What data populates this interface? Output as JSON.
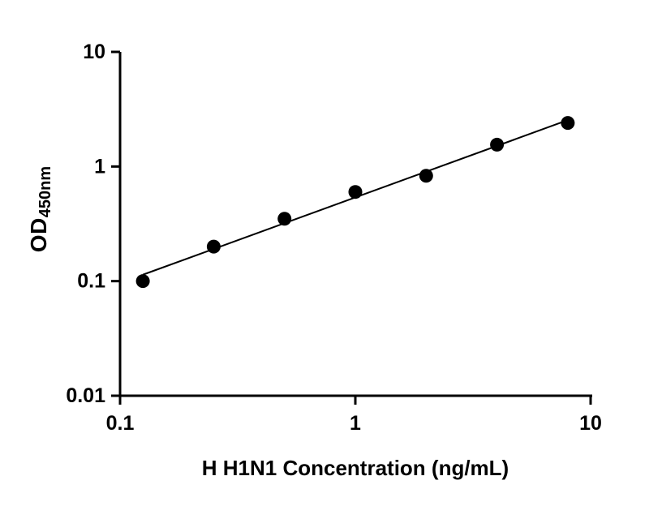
{
  "page": {
    "background": "#ffffff"
  },
  "chart_data": {
    "type": "scatter",
    "title": "",
    "xlabel": "H H1N1 Concentration (ng/mL)",
    "ylabel_main": "OD",
    "ylabel_sub": "450nm",
    "x_scale": "log",
    "y_scale": "log",
    "xlim": [
      0.1,
      10
    ],
    "ylim": [
      0.01,
      10
    ],
    "x_ticks": [
      0.1,
      1,
      10
    ],
    "x_tick_labels": [
      "0.1",
      "1",
      "10"
    ],
    "y_ticks": [
      0.01,
      0.1,
      1,
      10
    ],
    "y_tick_labels": [
      "0.01",
      "0.1",
      "1",
      "10"
    ],
    "points": {
      "x": [
        0.125,
        0.25,
        0.5,
        1,
        2,
        4,
        8
      ],
      "y": [
        0.1,
        0.2,
        0.35,
        0.6,
        0.83,
        1.55,
        2.4
      ]
    },
    "trend_line": true,
    "grid": false,
    "legend": "none",
    "marker_color": "#000000",
    "line_color": "#000000",
    "axis_color": "#000000",
    "tick_label_font_px": 25,
    "marker_radius_px": 8.5
  }
}
